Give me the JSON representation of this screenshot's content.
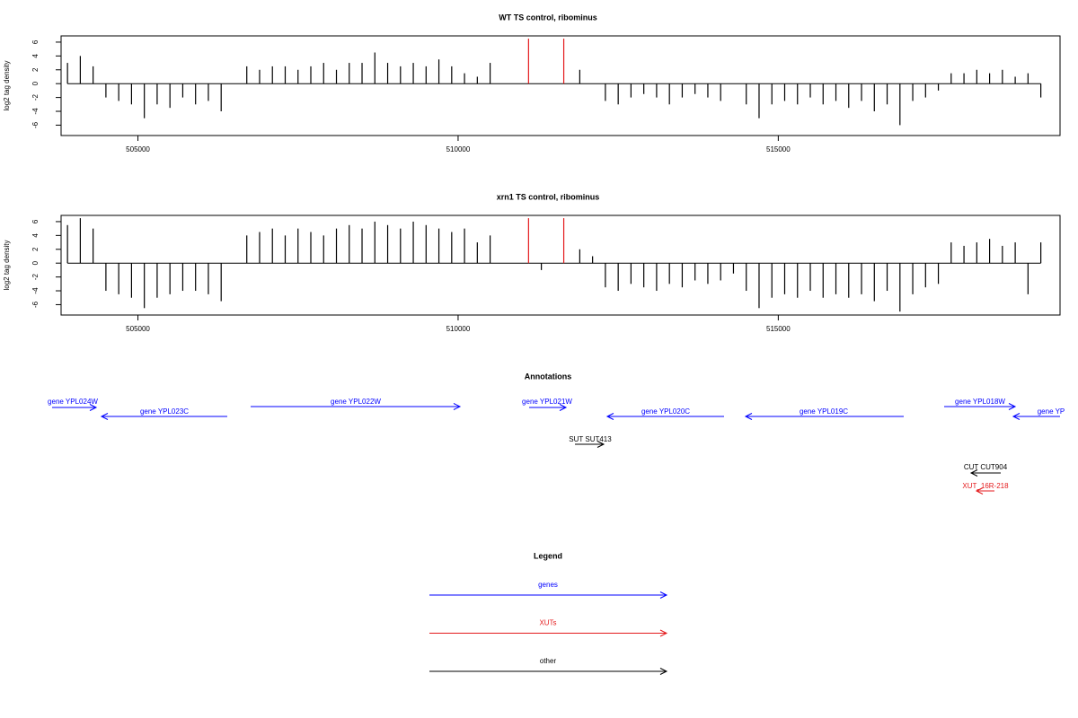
{
  "chart_data": [
    {
      "type": "bar",
      "title": "WT TS control, ribominus",
      "y_label": "log2 tag density",
      "xlim": [
        503800,
        519400
      ],
      "xticks": [
        505000,
        510000,
        515000
      ],
      "ylim": [
        -7.5,
        6.9
      ],
      "yticks": [
        -6,
        -4,
        -2,
        0,
        2,
        4,
        6
      ],
      "series": [
        {
          "color": "#000000",
          "x": [
            503900,
            504100,
            504300,
            504500,
            504700,
            504900,
            505100,
            505300,
            505500,
            505700,
            505900,
            506100,
            506300,
            506500,
            506700,
            506900,
            507100,
            507300,
            507500,
            507700,
            507900,
            508100,
            508300,
            508500,
            508700,
            508900,
            509100,
            509300,
            509500,
            509700,
            509900,
            510100,
            510300,
            510500,
            510700,
            510900,
            511100,
            511300,
            511500,
            511700,
            511900,
            512100,
            512300,
            512500,
            512700,
            512900,
            513100,
            513300,
            513500,
            513700,
            513900,
            514100,
            514300,
            514500,
            514700,
            514900,
            515100,
            515300,
            515500,
            515700,
            515900,
            516100,
            516300,
            516500,
            516700,
            516900,
            517100,
            517300,
            517500,
            517700,
            517900,
            518100,
            518300,
            518500,
            518700,
            518900,
            519100
          ],
          "values": [
            3,
            4,
            2.5,
            -2,
            -2.5,
            -3,
            -5,
            -3,
            -3.5,
            -2,
            -3,
            -2.5,
            -4,
            0,
            2.5,
            2,
            2.5,
            2.5,
            2,
            2.5,
            3,
            2,
            3,
            3,
            4.5,
            3,
            2.5,
            3,
            2.5,
            3.5,
            2.5,
            1.5,
            1,
            3,
            0,
            0,
            0,
            0,
            0,
            0,
            2,
            0,
            -2.5,
            -3,
            -2,
            -1.5,
            -2,
            -3,
            -2,
            -1.5,
            -2,
            -2.5,
            0,
            -3,
            -5,
            -3,
            -2.5,
            -3,
            -2,
            -3,
            -2.5,
            -3.5,
            -2.5,
            -4,
            -3,
            -6,
            -2.5,
            -2,
            -1,
            1.5,
            1.5,
            2,
            1.5,
            2,
            1,
            1.5,
            -2
          ]
        },
        {
          "color": "#e41a1c",
          "x": [
            511100,
            511650
          ],
          "values": [
            6.5,
            6.5
          ]
        }
      ]
    },
    {
      "type": "bar",
      "title": "xrn1 TS control, ribominus",
      "y_label": "log2 tag density",
      "xlim": [
        503800,
        519400
      ],
      "xticks": [
        505000,
        510000,
        515000
      ],
      "ylim": [
        -7.5,
        6.9
      ],
      "yticks": [
        -6,
        -4,
        -2,
        0,
        2,
        4,
        6
      ],
      "series": [
        {
          "color": "#000000",
          "x": [
            503900,
            504100,
            504300,
            504500,
            504700,
            504900,
            505100,
            505300,
            505500,
            505700,
            505900,
            506100,
            506300,
            506500,
            506700,
            506900,
            507100,
            507300,
            507500,
            507700,
            507900,
            508100,
            508300,
            508500,
            508700,
            508900,
            509100,
            509300,
            509500,
            509700,
            509900,
            510100,
            510300,
            510500,
            510700,
            510900,
            511100,
            511300,
            511500,
            511700,
            511900,
            512100,
            512300,
            512500,
            512700,
            512900,
            513100,
            513300,
            513500,
            513700,
            513900,
            514100,
            514300,
            514500,
            514700,
            514900,
            515100,
            515300,
            515500,
            515700,
            515900,
            516100,
            516300,
            516500,
            516700,
            516900,
            517100,
            517300,
            517500,
            517700,
            517900,
            518100,
            518300,
            518500,
            518700,
            518900,
            519100
          ],
          "values": [
            5.5,
            6.5,
            5,
            -4,
            -4.5,
            -5,
            -6.5,
            -5,
            -4.5,
            -4,
            -4,
            -4.5,
            -5.5,
            0,
            4,
            4.5,
            5,
            4,
            5,
            4.5,
            4,
            5,
            5.5,
            5,
            6,
            5.5,
            5,
            6,
            5.5,
            5,
            4.5,
            5,
            3,
            4,
            0,
            0,
            0,
            -1,
            0,
            0,
            2,
            1,
            -3.5,
            -4,
            -3,
            -3.5,
            -4,
            -3,
            -3.5,
            -2.5,
            -3,
            -2.5,
            -1.5,
            -4,
            -6.5,
            -5,
            -4.5,
            -5,
            -4,
            -5,
            -4.5,
            -5,
            -4.5,
            -5.5,
            -4,
            -7,
            -4.5,
            -3.5,
            -3,
            3,
            2.5,
            3,
            3.5,
            2.5,
            3,
            -4.5,
            3
          ]
        },
        {
          "color": "#e41a1c",
          "x": [
            511100,
            511650
          ],
          "values": [
            6.5,
            6.5
          ]
        }
      ]
    }
  ],
  "annotations": {
    "title": "Annotations",
    "items": [
      {
        "label": "gene YPL024W",
        "color": "#0000ff"
      },
      {
        "label": "gene YPL023C",
        "color": "#0000ff"
      },
      {
        "label": "gene YPL022W",
        "color": "#0000ff"
      },
      {
        "label": "gene YPL021W",
        "color": "#0000ff"
      },
      {
        "label": "gene YPL020C",
        "color": "#0000ff"
      },
      {
        "label": "gene YPL019C",
        "color": "#0000ff"
      },
      {
        "label": "gene YPL018W",
        "color": "#0000ff"
      },
      {
        "label": "gene YP",
        "color": "#0000ff"
      },
      {
        "label": "SUT SUT413",
        "color": "#000000"
      },
      {
        "label": "CUT CUT904",
        "color": "#000000"
      },
      {
        "label": "XUT_16R-218",
        "color": "#e41a1c"
      }
    ]
  },
  "legend": {
    "title": "Legend",
    "items": [
      {
        "label": "genes",
        "color": "#0000ff"
      },
      {
        "label": "XUTs",
        "color": "#e41a1c"
      },
      {
        "label": "other",
        "color": "#000000"
      }
    ]
  }
}
